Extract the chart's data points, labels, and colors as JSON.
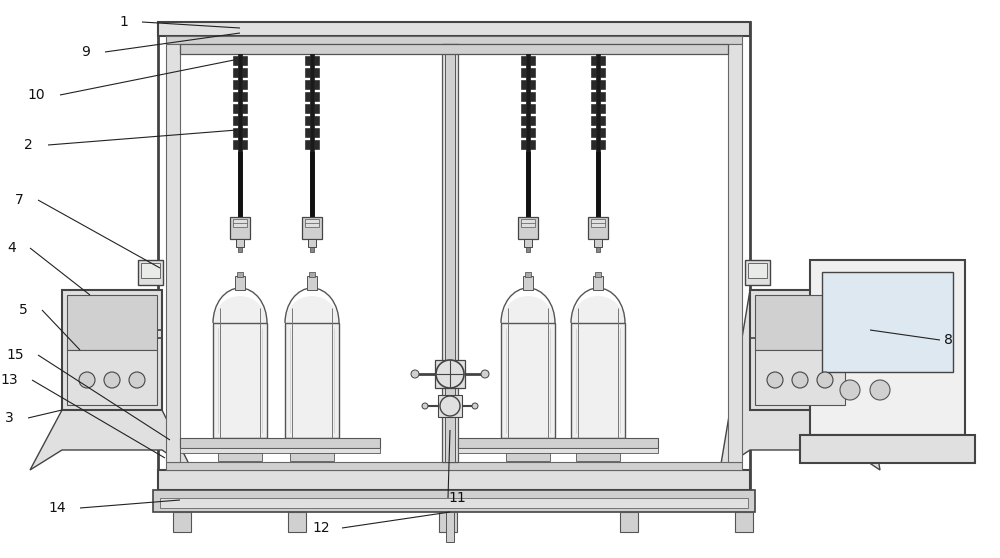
{
  "bg_color": "#ffffff",
  "figsize": [
    10.0,
    5.58
  ],
  "dpi": 100,
  "ec_main": "#555555",
  "ec_dark": "#333333",
  "fc_light": "#f0f0f0",
  "fc_mid": "#e0e0e0",
  "fc_gray": "#d0d0d0",
  "fc_dark": "#b0b0b0",
  "ann_color": "#222222",
  "ann_lw": 0.8,
  "labels": [
    "1",
    "9",
    "10",
    "2",
    "7",
    "4",
    "5",
    "15",
    "13",
    "3",
    "14",
    "12",
    "11",
    "8"
  ]
}
